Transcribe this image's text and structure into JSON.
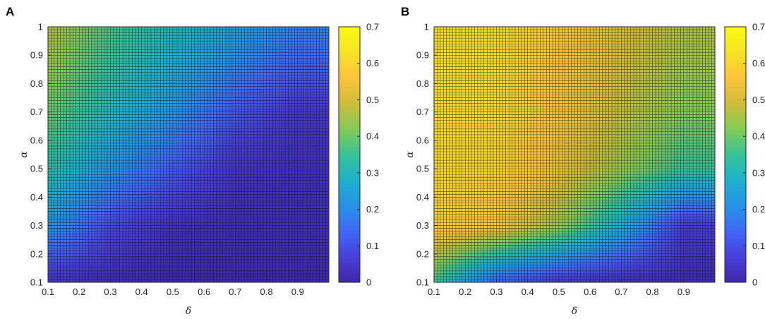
{
  "chart_data": [
    {
      "panel": "A",
      "type": "heatmap",
      "xlabel": "δ",
      "ylabel": "α",
      "xlim": [
        0.1,
        1.0
      ],
      "ylim": [
        0.1,
        1.0
      ],
      "x_ticks": [
        "0.1",
        "0.2",
        "0.3",
        "0.4",
        "0.5",
        "0.6",
        "0.7",
        "0.8",
        "0.9"
      ],
      "y_ticks": [
        "0.1",
        "0.2",
        "0.3",
        "0.4",
        "0.5",
        "0.6",
        "0.7",
        "0.8",
        "0.9",
        "1"
      ],
      "colorbar": {
        "range": [
          0,
          0.7
        ],
        "ticks": [
          "0",
          "0.1",
          "0.2",
          "0.3",
          "0.4",
          "0.5",
          "0.6",
          "0.7"
        ],
        "colormap": "parula"
      },
      "grid": true,
      "sample_values": {
        "delta": [
          0.1,
          0.3,
          0.5,
          0.7,
          0.9
        ],
        "alpha": [
          0.1,
          0.3,
          0.5,
          0.7,
          0.9,
          1.0
        ],
        "z": [
          [
            0.04,
            0.02,
            0.01,
            0.01,
            0.01
          ],
          [
            0.22,
            0.09,
            0.03,
            0.02,
            0.02
          ],
          [
            0.33,
            0.22,
            0.12,
            0.04,
            0.03
          ],
          [
            0.4,
            0.3,
            0.22,
            0.11,
            0.05
          ],
          [
            0.45,
            0.35,
            0.28,
            0.21,
            0.14
          ],
          [
            0.47,
            0.37,
            0.3,
            0.24,
            0.19
          ]
        ]
      }
    },
    {
      "panel": "B",
      "type": "heatmap",
      "xlabel": "δ",
      "ylabel": "α",
      "xlim": [
        0.1,
        1.0
      ],
      "ylim": [
        0.1,
        1.0
      ],
      "x_ticks": [
        "0.1",
        "0.2",
        "0.3",
        "0.4",
        "0.5",
        "0.6",
        "0.7",
        "0.8",
        "0.9"
      ],
      "y_ticks": [
        "0.1",
        "0.2",
        "0.3",
        "0.4",
        "0.5",
        "0.6",
        "0.7",
        "0.8",
        "0.9",
        "1"
      ],
      "colorbar": {
        "range": [
          0,
          0.7
        ],
        "ticks": [
          "0",
          "0.1",
          "0.2",
          "0.3",
          "0.4",
          "0.5",
          "0.6",
          "0.7"
        ],
        "colormap": "parula"
      },
      "grid": true,
      "sample_values": {
        "delta": [
          0.1,
          0.3,
          0.5,
          0.7,
          0.9
        ],
        "alpha": [
          0.1,
          0.3,
          0.5,
          0.7,
          0.9,
          1.0
        ],
        "z": [
          [
            0.36,
            0.12,
            0.05,
            0.03,
            0.02
          ],
          [
            0.58,
            0.55,
            0.44,
            0.27,
            0.06
          ],
          [
            0.61,
            0.6,
            0.53,
            0.44,
            0.35
          ],
          [
            0.62,
            0.61,
            0.55,
            0.48,
            0.42
          ],
          [
            0.62,
            0.62,
            0.56,
            0.5,
            0.45
          ],
          [
            0.62,
            0.62,
            0.57,
            0.51,
            0.46
          ]
        ]
      }
    }
  ]
}
